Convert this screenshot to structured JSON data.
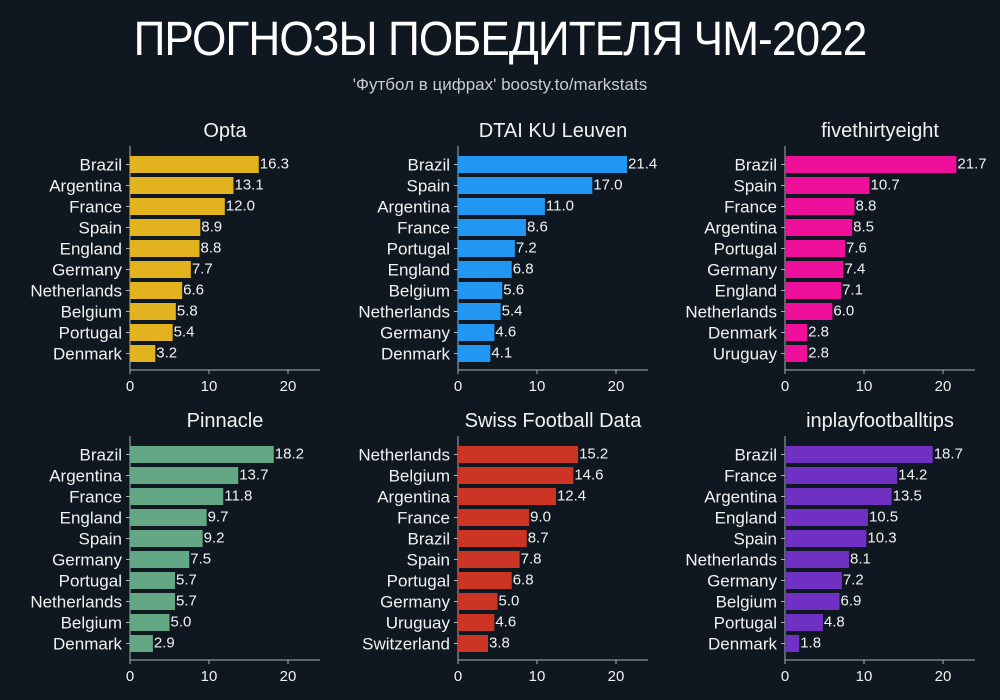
{
  "header": {
    "title": "ПРОГНОЗЫ ПОБЕДИТЕЛЯ ЧМ-2022",
    "subtitle": "'Футбол в цифрах' boosty.to/markstats"
  },
  "chart_data": [
    {
      "type": "bar",
      "orientation": "horizontal",
      "title": "Opta",
      "color": "#e3b21f",
      "categories": [
        "Brazil",
        "Argentina",
        "France",
        "Spain",
        "England",
        "Germany",
        "Netherlands",
        "Belgium",
        "Portugal",
        "Denmark"
      ],
      "values": [
        16.3,
        13.1,
        12.0,
        8.9,
        8.8,
        7.7,
        6.6,
        5.8,
        5.4,
        3.2
      ],
      "xlim": [
        0,
        24
      ],
      "xticks": [
        "0",
        "10",
        "20"
      ]
    },
    {
      "type": "bar",
      "orientation": "horizontal",
      "title": "DTAI KU Leuven",
      "color": "#2196f3",
      "categories": [
        "Brazil",
        "Spain",
        "Argentina",
        "France",
        "Portugal",
        "England",
        "Belgium",
        "Netherlands",
        "Germany",
        "Denmark"
      ],
      "values": [
        21.4,
        17.0,
        11.0,
        8.6,
        7.2,
        6.8,
        5.6,
        5.4,
        4.6,
        4.1
      ],
      "xlim": [
        0,
        24
      ],
      "xticks": [
        "0",
        "10",
        "20"
      ]
    },
    {
      "type": "bar",
      "orientation": "horizontal",
      "title": "fivethirtyeight",
      "color": "#ee0f9a",
      "categories": [
        "Brazil",
        "Spain",
        "France",
        "Argentina",
        "Portugal",
        "Germany",
        "England",
        "Netherlands",
        "Denmark",
        "Uruguay"
      ],
      "values": [
        21.7,
        10.7,
        8.8,
        8.5,
        7.6,
        7.4,
        7.1,
        6.0,
        2.8,
        2.8
      ],
      "xlim": [
        0,
        24
      ],
      "xticks": [
        "0",
        "10",
        "20"
      ]
    },
    {
      "type": "bar",
      "orientation": "horizontal",
      "title": "Pinnacle",
      "color": "#64a784",
      "categories": [
        "Brazil",
        "Argentina",
        "France",
        "England",
        "Spain",
        "Germany",
        "Portugal",
        "Netherlands",
        "Belgium",
        "Denmark"
      ],
      "values": [
        18.2,
        13.7,
        11.8,
        9.7,
        9.2,
        7.5,
        5.7,
        5.7,
        5.0,
        2.9
      ],
      "xlim": [
        0,
        24
      ],
      "xticks": [
        "0",
        "10",
        "20"
      ]
    },
    {
      "type": "bar",
      "orientation": "horizontal",
      "title": "Swiss Football Data",
      "color": "#cc3424",
      "categories": [
        "Netherlands",
        "Belgium",
        "Argentina",
        "France",
        "Brazil",
        "Spain",
        "Portugal",
        "Germany",
        "Uruguay",
        "Switzerland"
      ],
      "values": [
        15.2,
        14.6,
        12.4,
        9.0,
        8.7,
        7.8,
        6.8,
        5.0,
        4.6,
        3.8
      ],
      "xlim": [
        0,
        24
      ],
      "xticks": [
        "0",
        "10",
        "20"
      ]
    },
    {
      "type": "bar",
      "orientation": "horizontal",
      "title": "inplayfootballtips",
      "color": "#7130c4",
      "categories": [
        "Brazil",
        "France",
        "Argentina",
        "England",
        "Spain",
        "Netherlands",
        "Germany",
        "Belgium",
        "Portugal",
        "Denmark"
      ],
      "values": [
        18.7,
        14.2,
        13.5,
        10.5,
        10.3,
        8.1,
        7.2,
        6.9,
        4.8,
        1.8
      ],
      "xlim": [
        0,
        24
      ],
      "xticks": [
        "0",
        "10",
        "20"
      ]
    }
  ]
}
